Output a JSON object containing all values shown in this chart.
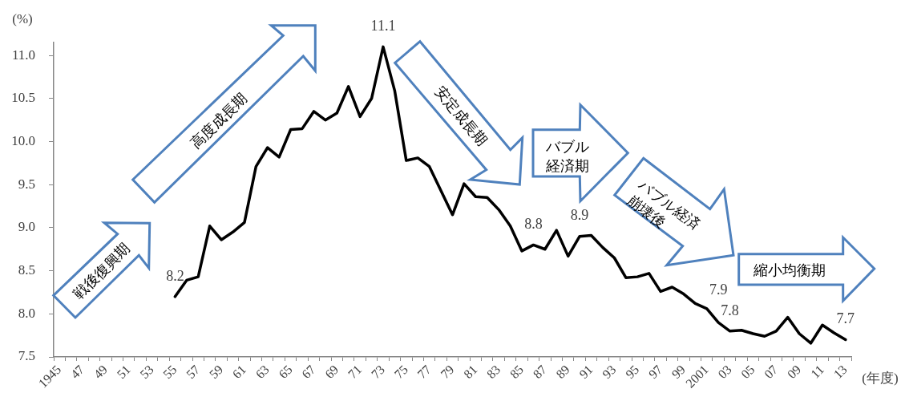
{
  "chart_data": {
    "type": "line",
    "ylabel": "(%)",
    "xlabel": "(年度)",
    "categories": [
      "1945",
      null,
      "47",
      null,
      "49",
      null,
      "51",
      null,
      "53",
      null,
      "55",
      null,
      "57",
      null,
      "59",
      null,
      "61",
      null,
      "63",
      null,
      "65",
      null,
      "67",
      null,
      "69",
      null,
      "71",
      null,
      "73",
      null,
      "75",
      null,
      "77",
      null,
      "79",
      null,
      "81",
      null,
      "83",
      null,
      "85",
      null,
      "87",
      null,
      "89",
      null,
      "91",
      null,
      "93",
      null,
      "95",
      null,
      "97",
      null,
      "99",
      null,
      "2001",
      null,
      "03",
      null,
      "05",
      null,
      "07",
      null,
      "09",
      null,
      "11",
      null,
      "13"
    ],
    "series": [
      {
        "color": "#000000",
        "values": [
          null,
          null,
          null,
          null,
          null,
          null,
          null,
          null,
          null,
          null,
          8.2,
          8.39,
          8.43,
          9.02,
          8.86,
          8.95,
          9.06,
          9.71,
          9.93,
          9.82,
          10.14,
          10.15,
          10.35,
          10.25,
          10.33,
          10.64,
          10.29,
          10.5,
          11.1,
          10.59,
          9.78,
          9.81,
          9.71,
          9.43,
          9.15,
          9.51,
          9.36,
          9.35,
          9.21,
          9.02,
          8.73,
          8.8,
          8.75,
          8.97,
          8.67,
          8.9,
          8.91,
          8.77,
          8.65,
          8.42,
          8.43,
          8.47,
          8.26,
          8.31,
          8.23,
          8.12,
          8.06,
          7.9,
          7.8,
          7.81,
          7.77,
          7.74,
          7.8,
          7.96,
          7.77,
          7.66,
          7.87,
          7.78,
          7.7
        ],
        "value_labels": [
          null,
          null,
          null,
          null,
          null,
          null,
          null,
          null,
          null,
          null,
          "8.2",
          null,
          null,
          null,
          null,
          null,
          null,
          null,
          null,
          null,
          null,
          null,
          null,
          null,
          null,
          null,
          null,
          null,
          "11.1",
          null,
          null,
          null,
          null,
          null,
          null,
          null,
          null,
          null,
          null,
          null,
          null,
          "8.8",
          null,
          null,
          null,
          "8.9",
          null,
          null,
          null,
          null,
          null,
          null,
          null,
          null,
          null,
          null,
          null,
          "7.9",
          "7.8",
          null,
          null,
          null,
          null,
          null,
          null,
          null,
          null,
          null,
          "7.7"
        ]
      }
    ],
    "ylim": [
      7.5,
      11.15
    ],
    "yticks": [
      7.5,
      {
        "value": 8,
        "label": "8.0"
      },
      8.5,
      {
        "value": 9,
        "label": "9.0"
      },
      9.5,
      {
        "value": 10,
        "label": "10.0"
      },
      10.5,
      {
        "value": 11,
        "label": "11.0"
      }
    ],
    "grid": false,
    "legend": false,
    "marker": "none",
    "line_style": "solid",
    "annotations": [
      "戦後復興期",
      "高度成長期",
      "安定成長期",
      "バブル経済期",
      "バブル経済崩壊後",
      "縮小均衡期"
    ]
  }
}
